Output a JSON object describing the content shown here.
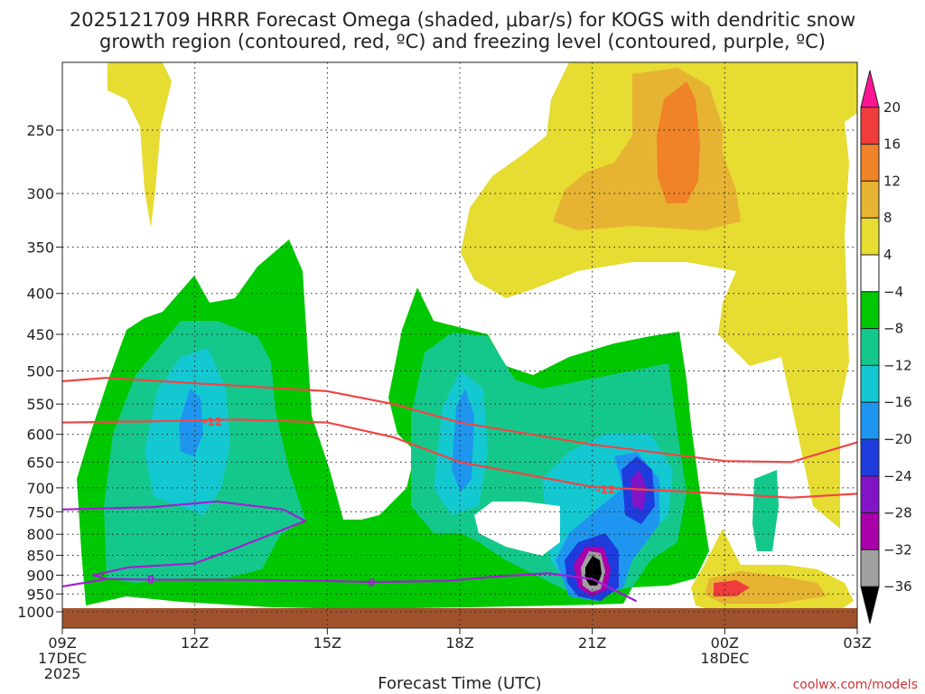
{
  "chart_data": {
    "type": "heatmap",
    "title_line1": "2025121709 HRRR Forecast Omega (shaded, μbar/s) for KOGS with dendritic snow",
    "title_line2": "growth region (contoured, red, ºC) and freezing level (contoured, purple, ºC)",
    "xlabel": "Forecast Time (UTC)",
    "ylabel": "",
    "x_ticks": [
      {
        "h": 0,
        "label": "09Z",
        "sub1": "17DEC",
        "sub2": "2025"
      },
      {
        "h": 3,
        "label": "12Z",
        "sub1": "",
        "sub2": ""
      },
      {
        "h": 6,
        "label": "15Z",
        "sub1": "",
        "sub2": ""
      },
      {
        "h": 9,
        "label": "18Z",
        "sub1": "",
        "sub2": ""
      },
      {
        "h": 12,
        "label": "21Z",
        "sub1": "",
        "sub2": ""
      },
      {
        "h": 15,
        "label": "00Z",
        "sub1": "18DEC",
        "sub2": ""
      },
      {
        "h": 18,
        "label": "03Z",
        "sub1": "",
        "sub2": ""
      }
    ],
    "xlim_hours": [
      0,
      18
    ],
    "y_ticks": [
      250,
      300,
      350,
      400,
      450,
      500,
      550,
      600,
      650,
      700,
      750,
      800,
      850,
      900,
      950,
      1000
    ],
    "ylim_hPa": [
      200,
      1020
    ],
    "y_scale": "log-pressure",
    "colorbar": {
      "levels": [
        20,
        16,
        12,
        8,
        4,
        -4,
        -8,
        -12,
        -16,
        -20,
        -24,
        -28,
        -32,
        -36
      ],
      "label_strings": [
        "20",
        "16",
        "12",
        "8",
        "4",
        "−4",
        "−8",
        "−12",
        "−16",
        "−20",
        "−24",
        "−28",
        "−32",
        "−36"
      ],
      "colors": [
        "#ff1493",
        "#f03c3c",
        "#f08228",
        "#e6b432",
        "#e6dc32",
        "#ffffff",
        "#00c800",
        "#14c88c",
        "#14c8d2",
        "#1e96f0",
        "#1e3cdc",
        "#8214c8",
        "#aa00aa",
        "#a0a0a0",
        "#000000"
      ]
    },
    "contours": [
      {
        "name": "dendritic-12C-upper",
        "value": -12,
        "color": "#f04646",
        "points": [
          [
            0,
            515
          ],
          [
            1,
            510
          ],
          [
            3,
            518
          ],
          [
            6,
            530
          ],
          [
            7.5,
            550
          ],
          [
            9,
            580
          ],
          [
            12,
            618
          ],
          [
            15,
            648
          ],
          [
            16.5,
            650
          ],
          [
            18,
            614
          ]
        ]
      },
      {
        "name": "dendritic-12C-lower",
        "value": -12,
        "color": "#f04646",
        "label": "-12",
        "points": [
          [
            0,
            580
          ],
          [
            2,
            578
          ],
          [
            4,
            575
          ],
          [
            6,
            580
          ],
          [
            7.5,
            605
          ],
          [
            9,
            650
          ],
          [
            12,
            698
          ],
          [
            15,
            712
          ],
          [
            16.5,
            720
          ],
          [
            18,
            712
          ]
        ]
      },
      {
        "name": "freezing-level-0C",
        "value": 0,
        "color": "#a020d2",
        "label": "0",
        "points": [
          [
            0,
            930
          ],
          [
            1,
            910
          ],
          [
            2,
            912
          ],
          [
            4,
            912
          ],
          [
            6,
            915
          ],
          [
            7,
            918
          ],
          [
            8.7,
            915
          ],
          [
            10,
            902
          ],
          [
            11,
            895
          ],
          [
            12,
            910
          ],
          [
            13,
            970
          ]
        ]
      },
      {
        "name": "freezing-loop-0C",
        "value": 0,
        "color": "#a020d2",
        "points": [
          [
            0,
            745
          ],
          [
            2,
            740
          ],
          [
            3.5,
            728
          ],
          [
            5,
            745
          ],
          [
            5.5,
            770
          ],
          [
            4,
            830
          ],
          [
            3,
            870
          ],
          [
            1.5,
            880
          ],
          [
            0.7,
            900
          ],
          [
            1,
            910
          ]
        ]
      }
    ],
    "regions": [
      {
        "name": "up-strong-core",
        "value": 12,
        "color": "#f08228",
        "center": [
          15.5,
          265
        ]
      },
      {
        "name": "up-moderate",
        "value": 8,
        "color": "#e6b432",
        "center": [
          14.5,
          275
        ]
      },
      {
        "name": "up-weak",
        "value": 4,
        "color": "#e6dc32",
        "center": [
          14,
          320
        ]
      },
      {
        "name": "down-low-level-max",
        "value": 16,
        "color": "#f03c3c",
        "center": [
          15,
          935
        ]
      },
      {
        "name": "up-motion-min-core",
        "value": -36,
        "color": "#000000",
        "center": [
          12,
          875
        ]
      },
      {
        "name": "up-motion-blue",
        "value": -20,
        "color": "#1e3cdc",
        "center": [
          12.9,
          710
        ]
      }
    ],
    "ground_color": "#a0522d"
  },
  "credit": "coolwx.com/models"
}
